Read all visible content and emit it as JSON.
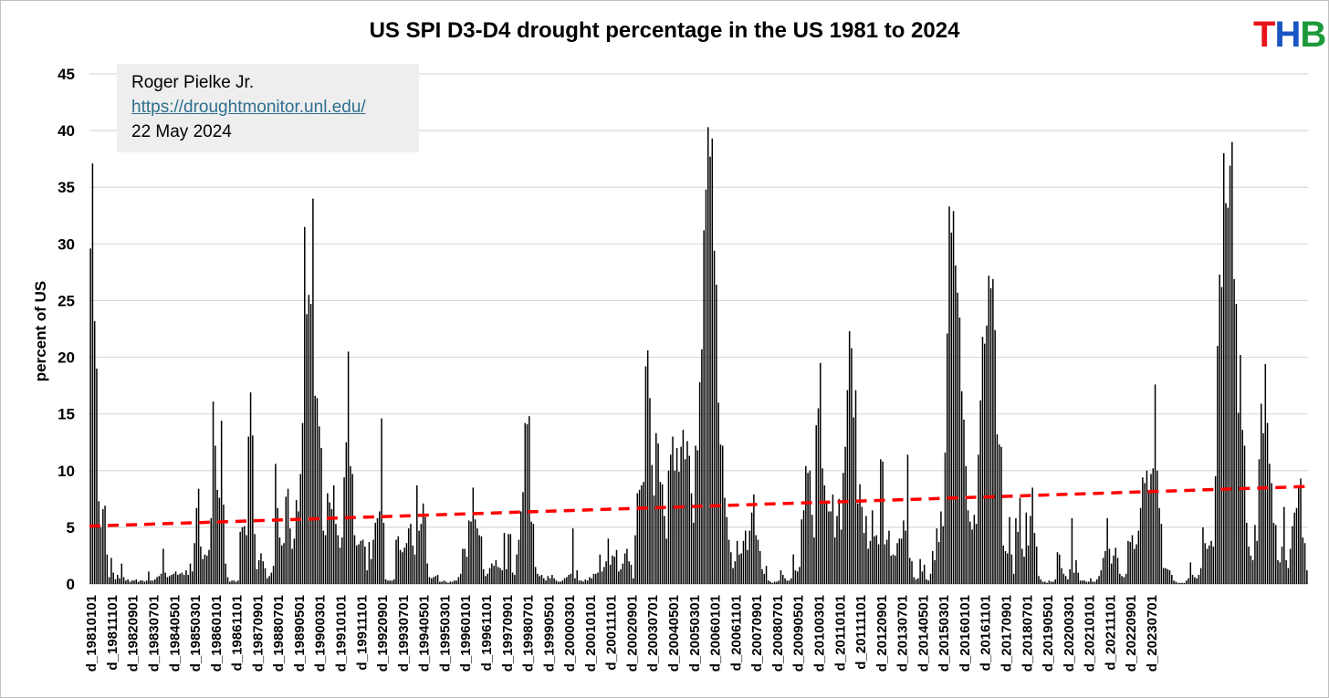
{
  "chart_data": {
    "type": "bar",
    "title": "US SPI D3-D4 drought percentage in the US 1981 to 2024",
    "ylabel": "percent of US",
    "xlabel": "",
    "ylim": [
      0,
      45
    ],
    "yticks": [
      0,
      5,
      10,
      15,
      20,
      25,
      30,
      35,
      40,
      45
    ],
    "grid": "horizontal",
    "x_start": "1981-01",
    "x_frequency": "monthly",
    "x_tick_labels": [
      "d_19810101",
      "d_19811101",
      "d_19820901",
      "d_19830701",
      "d_19840501",
      "d_19850301",
      "d_19860101",
      "d_19861101",
      "d_19870901",
      "d_19880701",
      "d_19890501",
      "d_19900301",
      "d_19910101",
      "d_19911101",
      "d_19920901",
      "d_19930701",
      "d_19940501",
      "d_19950301",
      "d_19960101",
      "d_19961101",
      "d_19970901",
      "d_19980701",
      "d_19990501",
      "d_20000301",
      "d_20010101",
      "d_20011101",
      "d_20020901",
      "d_20030701",
      "d_20040501",
      "d_20050301",
      "d_20060101",
      "d_20061101",
      "d_20070901",
      "d_20080701",
      "d_20090501",
      "d_20100301",
      "d_20110101",
      "d_20111101",
      "d_20120901",
      "d_20130701",
      "d_20140501",
      "d_20150301",
      "d_20160101",
      "d_20161101",
      "d_20170901",
      "d_20180701",
      "d_20190501",
      "d_20200301",
      "d_20210101",
      "d_20211101",
      "d_20220901",
      "d_20230701"
    ],
    "series": [
      {
        "type": "bar",
        "color": "#000000",
        "values": [
          29.6,
          37.1,
          23.2,
          19.0,
          7.3,
          5.0,
          6.6,
          6.9,
          2.6,
          0.6,
          2.3,
          1.0,
          0.4,
          0.8,
          0.5,
          1.8,
          0.6,
          0.3,
          0.4,
          0.2,
          0.3,
          0.3,
          0.4,
          0.2,
          0.3,
          0.3,
          0.2,
          0.3,
          1.1,
          0.3,
          0.3,
          0.4,
          0.6,
          0.7,
          0.9,
          3.1,
          1.0,
          0.6,
          0.7,
          0.8,
          0.9,
          1.1,
          0.8,
          0.9,
          1.0,
          0.8,
          1.2,
          0.8,
          1.8,
          1.1,
          3.6,
          6.7,
          8.4,
          3.3,
          2.2,
          2.6,
          2.5,
          3.0,
          5.8,
          16.1,
          12.2,
          8.3,
          7.6,
          14.4,
          7.0,
          1.8,
          0.6,
          0.2,
          0.3,
          0.3,
          0.2,
          0.3,
          4.6,
          5.0,
          5.1,
          4.3,
          13.0,
          16.9,
          13.1,
          4.4,
          1.3,
          2.1,
          2.7,
          2.0,
          1.4,
          0.5,
          0.7,
          1.0,
          1.6,
          10.6,
          6.7,
          4.1,
          3.4,
          3.6,
          7.7,
          8.4,
          4.9,
          3.1,
          4.0,
          7.4,
          6.4,
          9.7,
          14.2,
          31.5,
          23.8,
          25.5,
          24.7,
          34.0,
          16.6,
          16.4,
          13.9,
          12.0,
          4.7,
          4.3,
          8.0,
          7.2,
          6.6,
          8.7,
          5.3,
          4.3,
          3.2,
          4.1,
          9.4,
          12.5,
          20.5,
          10.4,
          9.7,
          4.3,
          3.4,
          3.5,
          3.8,
          3.9,
          3.3,
          1.2,
          3.7,
          2.2,
          3.9,
          5.4,
          5.8,
          6.4,
          14.6,
          5.4,
          0.4,
          0.3,
          0.3,
          0.3,
          0.4,
          3.9,
          4.2,
          3.0,
          2.8,
          3.2,
          3.6,
          4.9,
          5.3,
          3.4,
          2.6,
          8.7,
          4.7,
          5.3,
          7.1,
          5.9,
          1.8,
          0.6,
          0.5,
          0.6,
          0.7,
          0.8,
          0.2,
          0.2,
          0.3,
          0.2,
          0.1,
          0.2,
          0.2,
          0.3,
          0.3,
          0.6,
          0.9,
          3.1,
          3.1,
          2.4,
          5.6,
          5.5,
          8.5,
          5.7,
          4.9,
          4.3,
          4.2,
          1.3,
          0.7,
          0.9,
          1.4,
          1.8,
          1.6,
          2.1,
          1.5,
          1.4,
          1.2,
          4.5,
          1.3,
          4.4,
          4.4,
          1.0,
          0.8,
          2.6,
          3.9,
          6.4,
          8.1,
          14.2,
          14.1,
          14.8,
          5.5,
          5.3,
          1.5,
          0.9,
          0.7,
          0.8,
          0.5,
          0.3,
          0.7,
          0.5,
          0.8,
          0.5,
          0.3,
          0.2,
          0.2,
          0.3,
          0.5,
          0.6,
          0.8,
          0.9,
          4.9,
          0.5,
          1.2,
          0.3,
          0.3,
          0.2,
          0.4,
          0.3,
          0.6,
          0.5,
          0.9,
          0.9,
          1.0,
          2.6,
          1.1,
          1.5,
          2.0,
          4.0,
          1.7,
          2.5,
          2.4,
          3.0,
          1.1,
          1.3,
          1.8,
          2.7,
          3.1,
          2.0,
          1.7,
          0.5,
          4.3,
          8.0,
          8.3,
          8.7,
          9.0,
          19.2,
          20.6,
          16.4,
          10.5,
          7.8,
          13.3,
          12.4,
          9.0,
          8.8,
          6.0,
          4.0,
          10.0,
          11.4,
          13.0,
          10.0,
          12.0,
          9.9,
          12.1,
          13.6,
          11.0,
          12.6,
          11.3,
          8.0,
          5.4,
          12.2,
          11.8,
          17.8,
          20.7,
          31.2,
          34.8,
          40.3,
          37.7,
          39.3,
          29.4,
          26.4,
          16.0,
          12.3,
          12.2,
          7.6,
          5.9,
          3.9,
          2.8,
          1.4,
          2.0,
          3.8,
          2.6,
          2.7,
          3.8,
          4.7,
          3.0,
          4.7,
          6.3,
          7.9,
          4.3,
          3.9,
          2.9,
          1.3,
          0.9,
          1.6,
          0.3,
          0.2,
          0.1,
          0.2,
          0.2,
          0.3,
          1.2,
          0.8,
          0.5,
          0.3,
          0.3,
          0.5,
          2.6,
          1.2,
          1.1,
          1.5,
          5.7,
          6.5,
          10.4,
          9.8,
          10.0,
          6.1,
          4.1,
          14.0,
          15.5,
          19.5,
          10.2,
          8.7,
          7.2,
          6.4,
          6.4,
          7.9,
          4.1,
          6.0,
          7.5,
          4.8,
          9.8,
          12.1,
          17.1,
          22.3,
          20.8,
          14.7,
          17.1,
          7.1,
          8.8,
          6.8,
          4.5,
          6.0,
          3.1,
          3.8,
          6.5,
          4.2,
          4.3,
          3.5,
          11.0,
          10.8,
          3.5,
          3.9,
          4.7,
          2.5,
          2.6,
          2.5,
          3.6,
          4.0,
          4.0,
          5.6,
          4.7,
          11.4,
          2.3,
          2.0,
          0.6,
          0.4,
          0.5,
          2.2,
          1.1,
          1.7,
          0.4,
          0.3,
          0.9,
          2.9,
          2.1,
          4.9,
          3.7,
          6.4,
          5.1,
          11.6,
          22.1,
          33.3,
          31.0,
          32.9,
          28.1,
          25.7,
          23.5,
          17.0,
          14.5,
          10.4,
          6.5,
          5.5,
          4.8,
          6.1,
          5.3,
          11.4,
          16.2,
          21.8,
          21.2,
          22.8,
          27.2,
          26.1,
          26.9,
          22.4,
          13.2,
          12.3,
          12.1,
          3.4,
          2.9,
          2.7,
          5.9,
          2.6,
          0.9,
          5.8,
          4.6,
          7.6,
          3.1,
          2.4,
          6.3,
          3.4,
          6.0,
          8.5,
          4.5,
          3.3,
          0.7,
          0.4,
          0.2,
          0.2,
          0.1,
          0.3,
          0.2,
          0.2,
          0.4,
          2.8,
          2.6,
          1.4,
          0.9,
          0.7,
          0.4,
          1.3,
          5.8,
          1.0,
          2.1,
          1.0,
          0.3,
          0.3,
          0.3,
          0.2,
          0.2,
          0.5,
          0.2,
          0.2,
          0.4,
          0.7,
          1.2,
          2.3,
          2.9,
          5.8,
          3.1,
          1.8,
          2.5,
          3.2,
          2.3,
          0.9,
          0.7,
          0.6,
          0.9,
          3.8,
          3.7,
          4.3,
          3.1,
          3.5,
          4.7,
          6.7,
          9.4,
          8.9,
          10.0,
          8.1,
          9.7,
          10.2,
          17.6,
          10.0,
          6.7,
          5.3,
          1.4,
          1.4,
          1.3,
          1.2,
          0.8,
          0.3,
          0.2,
          0.1,
          0.1,
          0.1,
          0.1,
          0.3,
          0.5,
          1.9,
          0.8,
          0.6,
          0.5,
          0.8,
          1.4,
          5.0,
          3.6,
          3.1,
          3.4,
          3.8,
          3.3,
          9.5,
          21.0,
          27.3,
          26.2,
          38.0,
          33.6,
          33.2,
          36.9,
          39.0,
          26.9,
          24.7,
          15.1,
          20.2,
          13.6,
          12.2,
          5.4,
          3.3,
          2.5,
          2.1,
          5.2,
          3.8,
          11.0,
          15.9,
          13.3,
          19.4,
          14.2,
          10.6,
          8.9,
          5.4,
          5.2,
          2.1,
          1.9,
          3.3,
          6.8,
          2.1,
          1.4,
          3.1,
          5.1,
          6.3,
          6.7,
          8.7,
          9.3,
          4.1,
          3.6,
          1.2
        ]
      },
      {
        "type": "linear-trend",
        "color": "#ff0000",
        "style": "dashed",
        "start_value": 5.1,
        "end_value": 8.6
      }
    ],
    "annotation": {
      "lines": [
        "Roger Pielke Jr.",
        "https://droughtmonitor.unl.edu/",
        "22 May 2024"
      ],
      "position": "top-left"
    }
  },
  "logo": {
    "text": [
      "T",
      "H",
      "B"
    ],
    "colors": [
      "#e8141c",
      "#1a55c4",
      "#1c9a3a"
    ]
  }
}
